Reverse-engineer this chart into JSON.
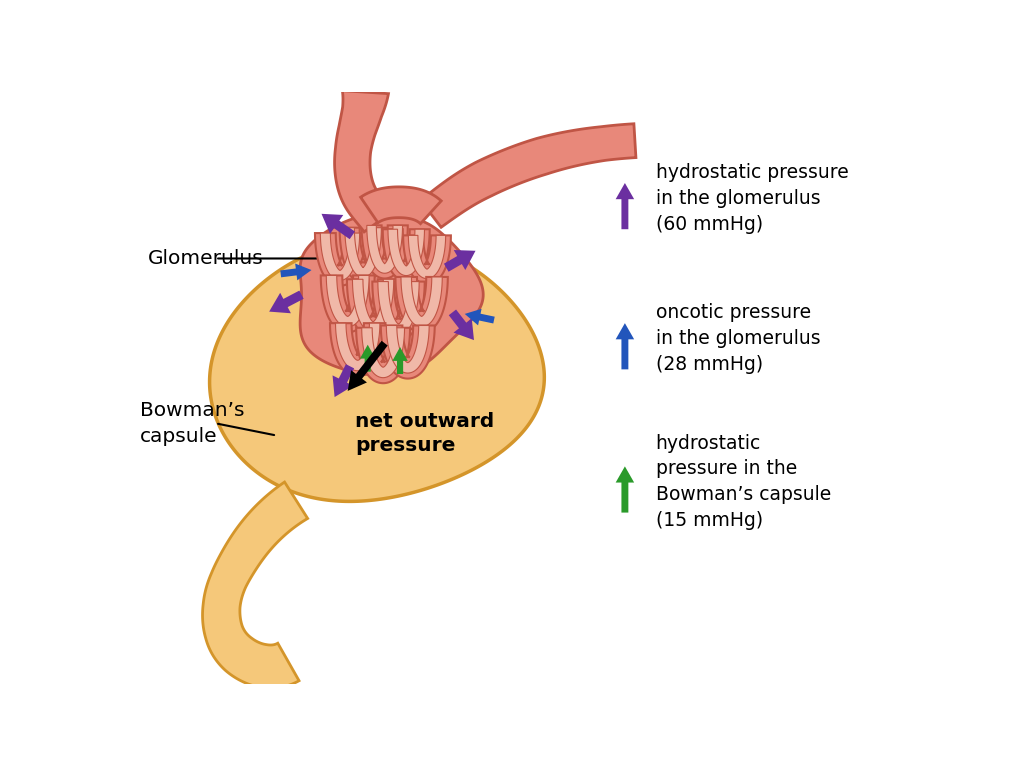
{
  "bg_color": "#ffffff",
  "bowmans_color": "#f5c87a",
  "bowmans_outline": "#d4952a",
  "vessel_fill": "#e8887a",
  "vessel_outline": "#c05545",
  "vessel_lumen": "#f0b8a8",
  "purple": "#6b2fa0",
  "blue": "#2255bb",
  "green": "#2a9a2a",
  "black": "#111111",
  "legend_labels": [
    "hydrostatic pressure\nin the glomerulus\n(60 mmHg)",
    "oncotic pressure\nin the glomerulus\n(28 mmHg)",
    "hydrostatic\npressure in the\nBowman’s capsule\n(15 mmHg)"
  ],
  "legend_colors": [
    "#6b2fa0",
    "#2255bb",
    "#2a9a2a"
  ],
  "glomerulus_label": "Glomerulus",
  "bowmans_label": "Bowman’s\ncapsule",
  "net_outward_label": "net outward\npressure"
}
